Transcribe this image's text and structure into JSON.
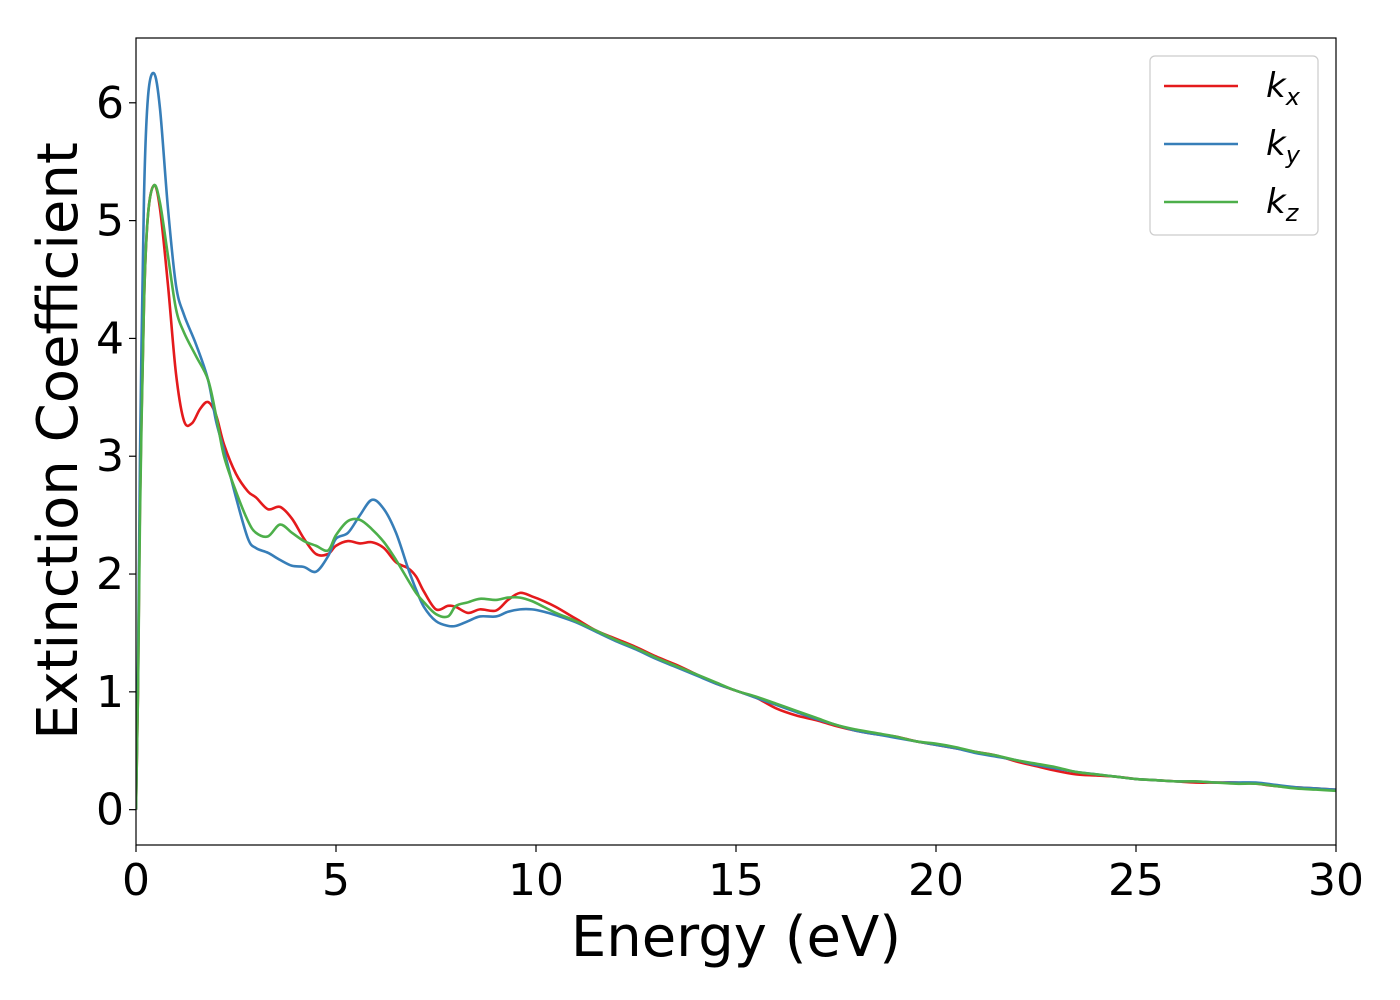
{
  "chart_data": {
    "type": "line",
    "xlabel": "Energy (eV)",
    "ylabel": "Extinction Coefficient",
    "xlim": [
      0,
      30
    ],
    "ylim": [
      -0.3,
      6.55
    ],
    "xticks": [
      0,
      5,
      10,
      15,
      20,
      25,
      30
    ],
    "yticks": [
      0,
      1,
      2,
      3,
      4,
      5,
      6
    ],
    "grid": false,
    "legend_position": "top-right",
    "series": [
      {
        "name": "k_x",
        "legend_base": "k",
        "legend_sub": "x",
        "color": "#e41a1c",
        "x": [
          0,
          0.05,
          0.1,
          0.2,
          0.3,
          0.45,
          0.6,
          0.8,
          1.0,
          1.2,
          1.4,
          1.6,
          1.8,
          2.0,
          2.2,
          2.5,
          2.8,
          3.0,
          3.3,
          3.6,
          3.9,
          4.2,
          4.5,
          4.8,
          5.0,
          5.3,
          5.6,
          5.9,
          6.2,
          6.5,
          6.8,
          7.0,
          7.2,
          7.5,
          7.8,
          8.0,
          8.3,
          8.6,
          9.0,
          9.3,
          9.6,
          9.9,
          10.2,
          10.5,
          11.0,
          11.5,
          12.0,
          12.5,
          13.0,
          13.5,
          14.0,
          14.5,
          15.0,
          15.5,
          16.0,
          16.5,
          17.0,
          17.5,
          18.0,
          18.5,
          19.0,
          19.5,
          20.0,
          20.5,
          21.0,
          21.5,
          22.0,
          22.5,
          23.0,
          23.5,
          24.0,
          24.5,
          25.0,
          25.5,
          26.0,
          26.5,
          27.0,
          27.5,
          28.0,
          28.5,
          29.0,
          29.5,
          30.0
        ],
        "y": [
          0.0,
          1.0,
          2.6,
          4.3,
          5.05,
          5.3,
          5.1,
          4.45,
          3.7,
          3.3,
          3.28,
          3.4,
          3.46,
          3.35,
          3.1,
          2.85,
          2.7,
          2.65,
          2.55,
          2.57,
          2.47,
          2.3,
          2.17,
          2.17,
          2.24,
          2.28,
          2.26,
          2.27,
          2.22,
          2.1,
          2.05,
          1.98,
          1.85,
          1.7,
          1.73,
          1.72,
          1.67,
          1.7,
          1.69,
          1.78,
          1.84,
          1.81,
          1.77,
          1.72,
          1.62,
          1.52,
          1.45,
          1.38,
          1.3,
          1.23,
          1.15,
          1.07,
          1.01,
          0.95,
          0.86,
          0.8,
          0.76,
          0.71,
          0.67,
          0.64,
          0.62,
          0.58,
          0.55,
          0.52,
          0.49,
          0.46,
          0.41,
          0.37,
          0.33,
          0.3,
          0.29,
          0.28,
          0.26,
          0.25,
          0.24,
          0.23,
          0.23,
          0.23,
          0.22,
          0.2,
          0.19,
          0.18,
          0.17
        ]
      },
      {
        "name": "k_y",
        "legend_base": "k",
        "legend_sub": "y",
        "color": "#377eb8",
        "x": [
          0,
          0.05,
          0.1,
          0.2,
          0.3,
          0.45,
          0.6,
          0.8,
          1.0,
          1.2,
          1.5,
          1.8,
          2.0,
          2.2,
          2.5,
          2.8,
          3.0,
          3.3,
          3.6,
          3.9,
          4.2,
          4.5,
          4.8,
          5.0,
          5.3,
          5.6,
          5.9,
          6.2,
          6.5,
          6.8,
          7.0,
          7.2,
          7.5,
          7.8,
          8.0,
          8.3,
          8.6,
          9.0,
          9.3,
          9.6,
          9.9,
          10.2,
          10.5,
          11.0,
          11.5,
          12.0,
          12.5,
          13.0,
          13.5,
          14.0,
          14.5,
          15.0,
          15.5,
          16.0,
          16.5,
          17.0,
          17.5,
          18.0,
          18.5,
          19.0,
          19.5,
          20.0,
          20.5,
          21.0,
          21.5,
          22.0,
          22.5,
          23.0,
          23.5,
          24.0,
          24.5,
          25.0,
          25.5,
          26.0,
          26.5,
          27.0,
          27.5,
          28.0,
          28.5,
          29.0,
          29.5,
          30.0
        ],
        "y": [
          0.0,
          1.2,
          3.0,
          5.2,
          6.05,
          6.25,
          5.95,
          5.1,
          4.45,
          4.2,
          3.95,
          3.65,
          3.3,
          3.05,
          2.65,
          2.3,
          2.22,
          2.18,
          2.12,
          2.07,
          2.06,
          2.02,
          2.15,
          2.3,
          2.35,
          2.5,
          2.63,
          2.55,
          2.35,
          2.05,
          1.87,
          1.72,
          1.6,
          1.56,
          1.56,
          1.6,
          1.64,
          1.64,
          1.68,
          1.7,
          1.7,
          1.68,
          1.65,
          1.59,
          1.51,
          1.43,
          1.36,
          1.28,
          1.21,
          1.14,
          1.07,
          1.01,
          0.95,
          0.89,
          0.83,
          0.77,
          0.72,
          0.67,
          0.64,
          0.61,
          0.58,
          0.55,
          0.52,
          0.48,
          0.45,
          0.42,
          0.38,
          0.35,
          0.32,
          0.3,
          0.28,
          0.26,
          0.25,
          0.24,
          0.24,
          0.23,
          0.23,
          0.23,
          0.21,
          0.19,
          0.18,
          0.17
        ]
      },
      {
        "name": "k_z",
        "legend_base": "k",
        "legend_sub": "z",
        "color": "#4daf4a",
        "x": [
          0,
          0.05,
          0.1,
          0.2,
          0.3,
          0.45,
          0.6,
          0.8,
          1.0,
          1.2,
          1.5,
          1.8,
          2.0,
          2.2,
          2.5,
          2.8,
          3.0,
          3.3,
          3.6,
          3.9,
          4.2,
          4.5,
          4.8,
          5.0,
          5.3,
          5.6,
          5.9,
          6.2,
          6.5,
          6.8,
          7.0,
          7.2,
          7.5,
          7.8,
          8.0,
          8.3,
          8.6,
          9.0,
          9.3,
          9.6,
          9.9,
          10.2,
          10.5,
          11.0,
          11.5,
          12.0,
          12.5,
          13.0,
          13.5,
          14.0,
          14.5,
          15.0,
          15.5,
          16.0,
          16.5,
          17.0,
          17.5,
          18.0,
          18.5,
          19.0,
          19.5,
          20.0,
          20.5,
          21.0,
          21.5,
          22.0,
          22.5,
          23.0,
          23.5,
          24.0,
          24.5,
          25.0,
          25.5,
          26.0,
          26.5,
          27.0,
          27.5,
          28.0,
          28.5,
          29.0,
          29.5,
          30.0
        ],
        "y": [
          0.0,
          1.0,
          2.5,
          4.3,
          5.05,
          5.3,
          5.15,
          4.7,
          4.25,
          4.05,
          3.85,
          3.65,
          3.35,
          3.0,
          2.7,
          2.45,
          2.35,
          2.32,
          2.42,
          2.35,
          2.28,
          2.24,
          2.2,
          2.33,
          2.45,
          2.46,
          2.38,
          2.27,
          2.12,
          1.95,
          1.84,
          1.76,
          1.66,
          1.64,
          1.73,
          1.76,
          1.79,
          1.78,
          1.8,
          1.8,
          1.77,
          1.72,
          1.67,
          1.6,
          1.52,
          1.44,
          1.37,
          1.29,
          1.22,
          1.15,
          1.08,
          1.01,
          0.96,
          0.9,
          0.84,
          0.78,
          0.72,
          0.68,
          0.65,
          0.62,
          0.58,
          0.56,
          0.53,
          0.49,
          0.46,
          0.42,
          0.39,
          0.36,
          0.32,
          0.3,
          0.28,
          0.26,
          0.25,
          0.24,
          0.24,
          0.23,
          0.22,
          0.22,
          0.2,
          0.18,
          0.17,
          0.16
        ]
      }
    ]
  }
}
